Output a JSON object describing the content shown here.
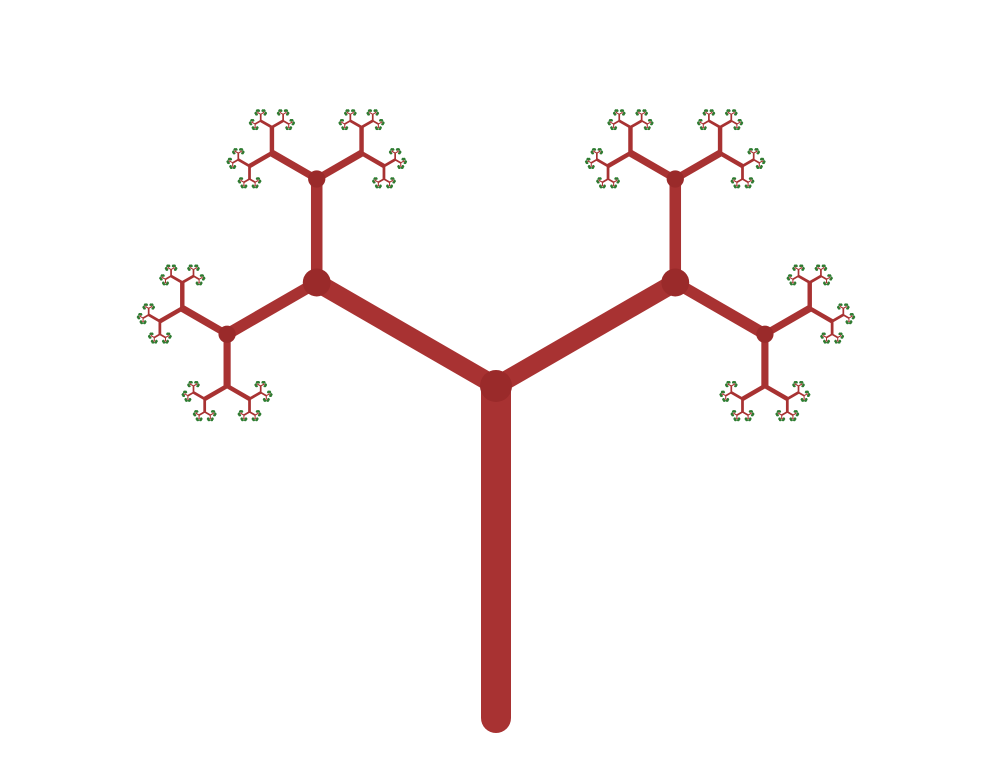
{
  "fractal": {
    "kind": "fractal-binary-tree",
    "branch_angle_deg": 120,
    "length_ratio": 0.5,
    "recursion_depth": 11,
    "colors": {
      "branch": "#a83232",
      "joint": "#9a2a2a",
      "leaf": "#2e7d32",
      "background": "#ffffff"
    }
  }
}
